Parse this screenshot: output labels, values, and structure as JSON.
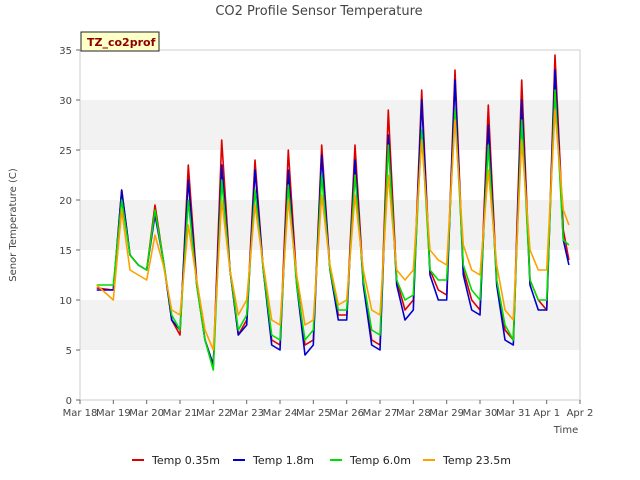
{
  "chart_data": {
    "type": "line",
    "title": "CO2 Profile Sensor Temperature",
    "site_label": "TZ_co2prof",
    "xlabel": "Time",
    "ylabel": "Senor Temperature (C)",
    "xlim": [
      "Mar 18",
      "Apr 2"
    ],
    "ylim": [
      0,
      35
    ],
    "x_ticks": [
      "Mar 18",
      "Mar 19",
      "Mar 20",
      "Mar 21",
      "Mar 22",
      "Mar 23",
      "Mar 24",
      "Mar 25",
      "Mar 26",
      "Mar 27",
      "Mar 28",
      "Mar 29",
      "Mar 30",
      "Mar 31",
      "Apr 1",
      "Apr 2"
    ],
    "y_ticks": [
      0,
      5,
      10,
      15,
      20,
      25,
      30,
      35
    ],
    "grid": "horizontal alternating bands",
    "legend_position": "bottom",
    "x": [
      "Mar 18 12:00",
      "Mar 19 00:00",
      "Mar 19 06:00",
      "Mar 19 12:00",
      "Mar 19 18:00",
      "Mar 20 00:00",
      "Mar 20 06:00",
      "Mar 20 12:00",
      "Mar 20 18:00",
      "Mar 21 00:00",
      "Mar 21 06:00",
      "Mar 21 12:00",
      "Mar 21 18:00",
      "Mar 22 00:00",
      "Mar 22 06:00",
      "Mar 22 12:00",
      "Mar 22 18:00",
      "Mar 23 00:00",
      "Mar 23 06:00",
      "Mar 23 12:00",
      "Mar 23 18:00",
      "Mar 24 00:00",
      "Mar 24 06:00",
      "Mar 24 12:00",
      "Mar 24 18:00",
      "Mar 25 00:00",
      "Mar 25 06:00",
      "Mar 25 12:00",
      "Mar 25 18:00",
      "Mar 26 00:00",
      "Mar 26 06:00",
      "Mar 26 12:00",
      "Mar 26 18:00",
      "Mar 27 00:00",
      "Mar 27 06:00",
      "Mar 27 12:00",
      "Mar 27 18:00",
      "Mar 28 00:00",
      "Mar 28 06:00",
      "Mar 28 12:00",
      "Mar 28 18:00",
      "Mar 29 00:00",
      "Mar 29 06:00",
      "Mar 29 12:00",
      "Mar 29 18:00",
      "Mar 30 00:00",
      "Mar 30 06:00",
      "Mar 30 12:00",
      "Mar 30 18:00",
      "Mar 31 00:00",
      "Mar 31 06:00",
      "Mar 31 12:00",
      "Mar 31 18:00",
      "Apr 1 00:00",
      "Apr 1 06:00",
      "Apr 1 12:00",
      "Apr 1 16:00"
    ],
    "series": [
      {
        "name": "Temp 0.35m",
        "color": "#dd0000",
        "values": [
          11.2,
          11.0,
          21.0,
          14.5,
          13.5,
          13.0,
          19.5,
          14.0,
          8.0,
          6.5,
          23.5,
          12.0,
          6.0,
          3.5,
          26.0,
          13.0,
          6.5,
          8.0,
          24.0,
          13.0,
          6.0,
          5.5,
          25.0,
          12.0,
          5.5,
          6.0,
          25.5,
          13.0,
          8.5,
          8.5,
          25.5,
          12.0,
          6.0,
          5.5,
          29.0,
          12.0,
          9.0,
          10.0,
          31.0,
          13.0,
          11.0,
          10.5,
          33.0,
          13.0,
          10.0,
          9.0,
          29.5,
          12.0,
          7.0,
          6.0,
          32.0,
          12.0,
          10.0,
          9.0,
          34.5,
          17.0,
          14.0
        ]
      },
      {
        "name": "Temp 1.8m",
        "color": "#0000cc",
        "values": [
          11.0,
          11.0,
          21.0,
          14.5,
          13.5,
          13.0,
          18.5,
          14.0,
          8.0,
          7.0,
          22.0,
          11.5,
          6.0,
          3.5,
          23.5,
          13.0,
          6.5,
          7.5,
          23.0,
          13.0,
          5.5,
          5.0,
          23.0,
          11.5,
          4.5,
          5.5,
          24.5,
          13.0,
          8.0,
          8.0,
          24.0,
          11.5,
          5.5,
          5.0,
          26.5,
          11.5,
          8.0,
          9.0,
          30.0,
          12.5,
          10.0,
          10.0,
          32.0,
          12.5,
          9.0,
          8.5,
          27.5,
          11.5,
          6.0,
          5.5,
          30.0,
          11.5,
          9.0,
          9.0,
          33.0,
          16.0,
          13.5
        ]
      },
      {
        "name": "Temp 6.0m",
        "color": "#00dd00",
        "values": [
          11.5,
          11.5,
          20.0,
          14.5,
          13.5,
          13.0,
          19.0,
          14.0,
          8.5,
          7.0,
          20.0,
          11.5,
          6.0,
          3.0,
          22.0,
          13.0,
          7.0,
          8.5,
          21.0,
          13.0,
          6.5,
          6.0,
          21.5,
          11.5,
          6.0,
          7.0,
          22.5,
          13.0,
          9.0,
          9.0,
          22.5,
          12.0,
          7.0,
          6.5,
          25.5,
          12.0,
          10.0,
          10.5,
          27.0,
          13.0,
          12.0,
          12.0,
          29.0,
          13.5,
          11.0,
          10.0,
          25.5,
          12.0,
          7.5,
          6.0,
          28.0,
          12.0,
          10.0,
          10.0,
          31.0,
          16.0,
          15.5
        ]
      },
      {
        "name": "Temp 23.5m",
        "color": "#ffa000",
        "values": [
          11.5,
          10.0,
          19.0,
          13.0,
          12.5,
          12.0,
          16.5,
          13.5,
          9.0,
          8.5,
          17.5,
          12.0,
          7.0,
          5.0,
          20.0,
          13.0,
          8.5,
          10.0,
          19.5,
          13.5,
          8.0,
          7.5,
          20.0,
          12.5,
          7.5,
          8.0,
          20.5,
          13.5,
          9.5,
          10.0,
          20.5,
          13.0,
          9.0,
          8.5,
          22.5,
          13.0,
          12.0,
          13.0,
          26.0,
          15.0,
          14.0,
          13.5,
          28.0,
          15.5,
          13.0,
          12.5,
          23.0,
          13.5,
          9.0,
          8.0,
          26.0,
          15.0,
          13.0,
          13.0,
          29.0,
          19.0,
          17.5
        ]
      }
    ]
  },
  "legend": [
    {
      "label": "Temp 0.35m",
      "color": "#dd0000"
    },
    {
      "label": "Temp 1.8m",
      "color": "#0000cc"
    },
    {
      "label": "Temp 6.0m",
      "color": "#00dd00"
    },
    {
      "label": "Temp 23.5m",
      "color": "#ffa000"
    }
  ]
}
